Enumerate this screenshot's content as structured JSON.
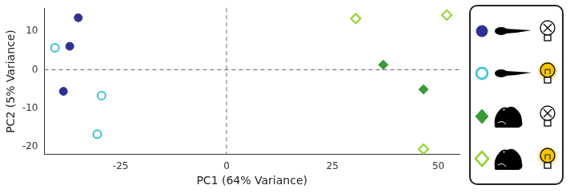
{
  "chart_data": {
    "type": "scatter",
    "x_label": "PC1 (64% Variance)",
    "y_label": "PC2 (5% Variance)",
    "xlim": [
      -43,
      55
    ],
    "xticks": [
      -25,
      0,
      25,
      50
    ],
    "ylim": [
      -22,
      16
    ],
    "yticks": [
      -20,
      -10,
      0,
      10
    ],
    "grid": false,
    "legend": "right",
    "series": [
      {
        "color": "#2e3192",
        "marker": "circle",
        "x": [
          -35,
          -37,
          -38.5
        ],
        "values": [
          13.5,
          6.1,
          -5.6
        ]
      },
      {
        "color": "#33c3d8",
        "marker": "open circle",
        "x": [
          -40.5,
          -29.5,
          -30.5
        ],
        "values": [
          5.7,
          -6.7,
          -16.7
        ]
      },
      {
        "color": "#3a9a3a",
        "marker": "diamond",
        "x": [
          37,
          46.5
        ],
        "values": [
          1.3,
          -5.1
        ]
      },
      {
        "color": "#8fd42a",
        "marker": "open diamond",
        "x": [
          30.5,
          52,
          46.5
        ],
        "values": [
          13.3,
          14.2,
          -20.6
        ]
      }
    ]
  }
}
